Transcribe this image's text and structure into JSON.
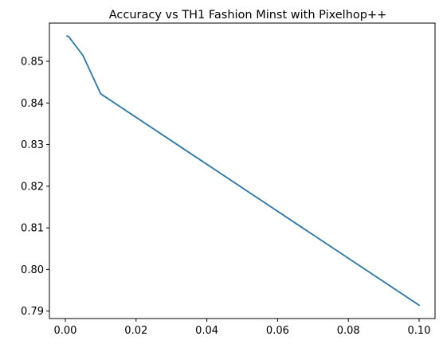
{
  "chart_data": {
    "type": "line",
    "title": "Accuracy vs TH1 Fashion Minst with Pixelhop++",
    "xlabel": "",
    "ylabel": "",
    "xlim": [
      -0.0045,
      0.1045
    ],
    "ylim": [
      0.7882,
      0.8592
    ],
    "grid": false,
    "line_color": "#1f77b4",
    "x_ticks": [
      0.0,
      0.02,
      0.04,
      0.06,
      0.08,
      0.1
    ],
    "x_tick_labels": [
      "0.00",
      "0.02",
      "0.04",
      "0.06",
      "0.08",
      "0.10"
    ],
    "y_ticks": [
      0.79,
      0.8,
      0.81,
      0.82,
      0.83,
      0.84,
      0.85
    ],
    "y_tick_labels": [
      "0.79",
      "0.80",
      "0.81",
      "0.82",
      "0.83",
      "0.84",
      "0.85"
    ],
    "series": [
      {
        "x": [
          0.0005,
          0.001,
          0.005,
          0.01,
          0.1
        ],
        "y": [
          0.8561,
          0.8559,
          0.8514,
          0.8422,
          0.7914
        ]
      }
    ]
  }
}
